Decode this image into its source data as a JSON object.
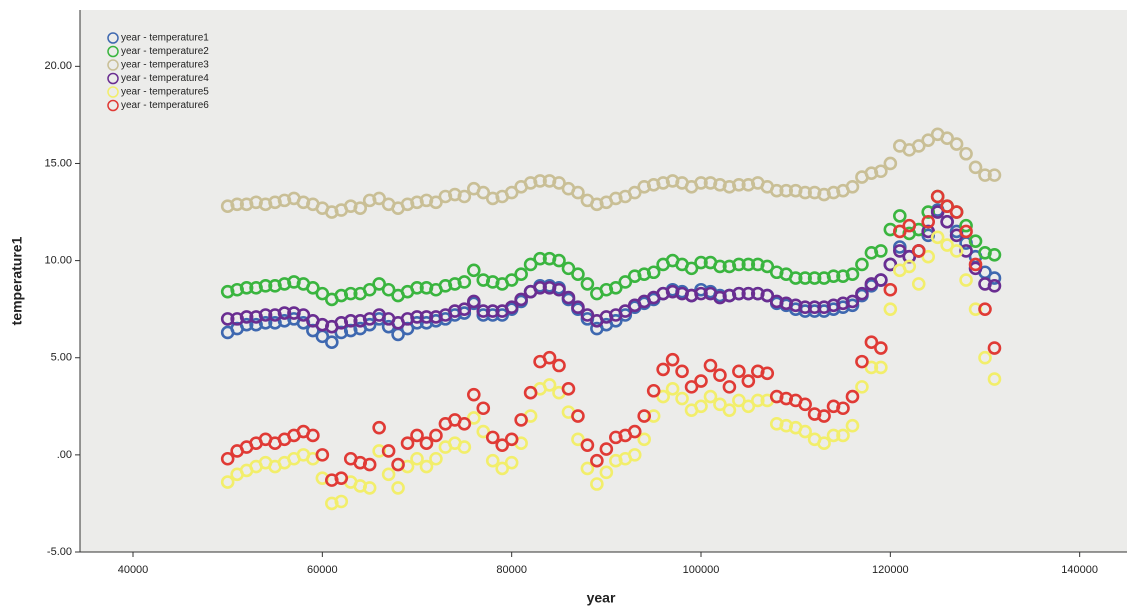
{
  "chart_data": {
    "type": "scatter",
    "x_label": "year",
    "y_label": "temperature1",
    "xlim": [
      34400,
      145000
    ],
    "ylim": [
      -5,
      22.9
    ],
    "xticks": [
      40000,
      60000,
      80000,
      100000,
      120000,
      140000
    ],
    "yticks": [
      {
        "value": -5,
        "label": "-5.00"
      },
      {
        "value": 0,
        "label": ".00"
      },
      {
        "value": 5,
        "label": "5.00"
      },
      {
        "value": 10,
        "label": "10.00"
      },
      {
        "value": 15,
        "label": "15.00"
      },
      {
        "value": 20,
        "label": "20.00"
      }
    ],
    "grid": false,
    "legend": "top-left",
    "x": [
      50000,
      51000,
      52000,
      53000,
      54000,
      55000,
      56000,
      57000,
      58000,
      59000,
      60000,
      61000,
      62000,
      63000,
      64000,
      65000,
      66000,
      67000,
      68000,
      69000,
      70000,
      71000,
      72000,
      73000,
      74000,
      75000,
      76000,
      77000,
      78000,
      79000,
      80000,
      81000,
      82000,
      83000,
      84000,
      85000,
      86000,
      87000,
      88000,
      89000,
      90000,
      91000,
      92000,
      93000,
      94000,
      95000,
      96000,
      97000,
      98000,
      99000,
      100000,
      101000,
      102000,
      103000,
      104000,
      105000,
      106000,
      107000,
      108000,
      109000,
      110000,
      111000,
      112000,
      113000,
      114000,
      115000,
      116000,
      117000,
      118000,
      119000,
      120000,
      121000,
      122000,
      123000,
      124000,
      125000,
      126000,
      127000,
      128000,
      129000,
      130000,
      131000
    ],
    "series": [
      {
        "name": "year - temperature1",
        "color": "#3e68b0",
        "values": [
          6.3,
          6.5,
          6.7,
          6.7,
          6.8,
          6.8,
          6.9,
          7.0,
          6.8,
          6.4,
          6.1,
          5.8,
          6.3,
          6.4,
          6.5,
          6.7,
          7.0,
          6.6,
          6.2,
          6.5,
          6.8,
          6.8,
          6.9,
          7.0,
          7.2,
          7.3,
          7.8,
          7.2,
          7.2,
          7.2,
          7.5,
          7.9,
          8.4,
          8.7,
          8.7,
          8.6,
          8.0,
          7.5,
          7.0,
          6.5,
          6.7,
          6.9,
          7.2,
          7.6,
          7.8,
          8.0,
          8.3,
          8.5,
          8.4,
          8.2,
          8.5,
          8.4,
          8.2,
          8.2,
          8.3,
          8.3,
          8.3,
          8.2,
          7.8,
          7.7,
          7.5,
          7.4,
          7.4,
          7.4,
          7.5,
          7.6,
          7.7,
          8.2,
          8.7,
          9.0,
          9.8,
          10.7,
          10.2,
          10.5,
          11.3,
          12.6,
          12.0,
          11.5,
          10.9,
          10.2,
          9.4,
          9.1
        ]
      },
      {
        "name": "year - temperature2",
        "color": "#3ab53f",
        "values": [
          8.4,
          8.5,
          8.6,
          8.6,
          8.7,
          8.7,
          8.8,
          8.9,
          8.8,
          8.6,
          8.3,
          8.0,
          8.2,
          8.3,
          8.3,
          8.5,
          8.8,
          8.5,
          8.2,
          8.4,
          8.6,
          8.6,
          8.5,
          8.7,
          8.8,
          8.9,
          9.5,
          9.0,
          8.9,
          8.8,
          9.0,
          9.3,
          9.8,
          10.1,
          10.1,
          10.0,
          9.6,
          9.3,
          8.8,
          8.3,
          8.5,
          8.6,
          8.9,
          9.2,
          9.3,
          9.4,
          9.8,
          10.0,
          9.8,
          9.6,
          9.9,
          9.9,
          9.7,
          9.7,
          9.8,
          9.8,
          9.8,
          9.7,
          9.4,
          9.3,
          9.1,
          9.1,
          9.1,
          9.1,
          9.2,
          9.2,
          9.3,
          9.8,
          10.4,
          10.5,
          11.6,
          12.3,
          11.4,
          11.6,
          12.5,
          13.3,
          12.8,
          12.5,
          11.8,
          11.0,
          10.4,
          10.3
        ]
      },
      {
        "name": "year - temperature3",
        "color": "#c9bf96",
        "values": [
          12.8,
          12.9,
          12.9,
          13.0,
          12.9,
          13.0,
          13.1,
          13.2,
          13.0,
          12.9,
          12.7,
          12.5,
          12.6,
          12.8,
          12.7,
          13.1,
          13.2,
          12.9,
          12.7,
          12.9,
          13.0,
          13.1,
          13.0,
          13.3,
          13.4,
          13.3,
          13.7,
          13.5,
          13.2,
          13.3,
          13.5,
          13.8,
          14.0,
          14.1,
          14.1,
          14.0,
          13.7,
          13.5,
          13.1,
          12.9,
          13.0,
          13.2,
          13.3,
          13.5,
          13.8,
          13.9,
          14.0,
          14.1,
          14.0,
          13.8,
          14.0,
          14.0,
          13.9,
          13.8,
          13.9,
          13.9,
          14.0,
          13.8,
          13.6,
          13.6,
          13.6,
          13.5,
          13.5,
          13.4,
          13.5,
          13.6,
          13.8,
          14.3,
          14.5,
          14.6,
          15.0,
          15.9,
          15.7,
          15.9,
          16.2,
          16.5,
          16.3,
          16.0,
          15.5,
          14.8,
          14.4,
          14.4
        ]
      },
      {
        "name": "year - temperature4",
        "color": "#6a2d91",
        "values": [
          7.0,
          7.0,
          7.1,
          7.1,
          7.2,
          7.2,
          7.3,
          7.3,
          7.2,
          6.9,
          6.7,
          6.6,
          6.8,
          6.9,
          6.9,
          7.0,
          7.2,
          7.0,
          6.8,
          7.0,
          7.1,
          7.1,
          7.1,
          7.2,
          7.4,
          7.5,
          7.9,
          7.4,
          7.4,
          7.4,
          7.6,
          8.0,
          8.4,
          8.6,
          8.6,
          8.5,
          8.1,
          7.6,
          7.2,
          6.9,
          7.1,
          7.2,
          7.4,
          7.7,
          7.9,
          8.1,
          8.3,
          8.4,
          8.3,
          8.2,
          8.3,
          8.3,
          8.1,
          8.2,
          8.3,
          8.3,
          8.3,
          8.2,
          7.9,
          7.8,
          7.7,
          7.6,
          7.6,
          7.6,
          7.7,
          7.8,
          7.9,
          8.3,
          8.8,
          9.0,
          9.8,
          10.5,
          10.2,
          10.5,
          11.5,
          12.5,
          12.0,
          11.3,
          10.5,
          9.6,
          8.8,
          8.7
        ]
      },
      {
        "name": "year - temperature5",
        "color": "#f2ee6b",
        "values": [
          -1.4,
          -1.0,
          -0.8,
          -0.6,
          -0.4,
          -0.6,
          -0.4,
          -0.2,
          0.0,
          -0.2,
          -1.2,
          -2.5,
          -2.4,
          -1.4,
          -1.6,
          -1.7,
          0.2,
          -1.0,
          -1.7,
          -0.6,
          -0.2,
          -0.6,
          -0.2,
          0.4,
          0.6,
          0.4,
          1.9,
          1.2,
          -0.3,
          -0.7,
          -0.4,
          0.6,
          2.0,
          3.4,
          3.6,
          3.2,
          2.2,
          0.8,
          -0.7,
          -1.5,
          -0.9,
          -0.3,
          -0.2,
          0.0,
          0.8,
          2.0,
          3.0,
          3.4,
          2.9,
          2.3,
          2.5,
          3.0,
          2.6,
          2.3,
          2.8,
          2.5,
          2.8,
          2.8,
          1.6,
          1.5,
          1.4,
          1.2,
          0.8,
          0.6,
          1.0,
          1.0,
          1.5,
          3.5,
          4.5,
          4.5,
          7.5,
          9.5,
          9.7,
          8.8,
          10.2,
          11.2,
          10.8,
          10.5,
          9.0,
          7.5,
          5.0,
          3.9
        ]
      },
      {
        "name": "year - temperature6",
        "color": "#e03a35",
        "values": [
          -0.2,
          0.2,
          0.4,
          0.6,
          0.8,
          0.6,
          0.8,
          1.0,
          1.2,
          1.0,
          0.0,
          -1.3,
          -1.2,
          -0.2,
          -0.4,
          -0.5,
          1.4,
          0.2,
          -0.5,
          0.6,
          1.0,
          0.6,
          1.0,
          1.6,
          1.8,
          1.6,
          3.1,
          2.4,
          0.9,
          0.5,
          0.8,
          1.8,
          3.2,
          4.8,
          5.0,
          4.6,
          3.4,
          2.0,
          0.5,
          -0.3,
          0.3,
          0.9,
          1.0,
          1.2,
          2.0,
          3.3,
          4.4,
          4.9,
          4.3,
          3.5,
          3.8,
          4.6,
          4.1,
          3.5,
          4.3,
          3.8,
          4.3,
          4.2,
          3.0,
          2.9,
          2.8,
          2.6,
          2.1,
          2.0,
          2.5,
          2.4,
          3.0,
          4.8,
          5.8,
          5.5,
          8.5,
          11.5,
          11.8,
          10.5,
          12.0,
          13.3,
          12.8,
          12.5,
          11.5,
          9.8,
          7.5,
          5.5
        ]
      }
    ]
  }
}
